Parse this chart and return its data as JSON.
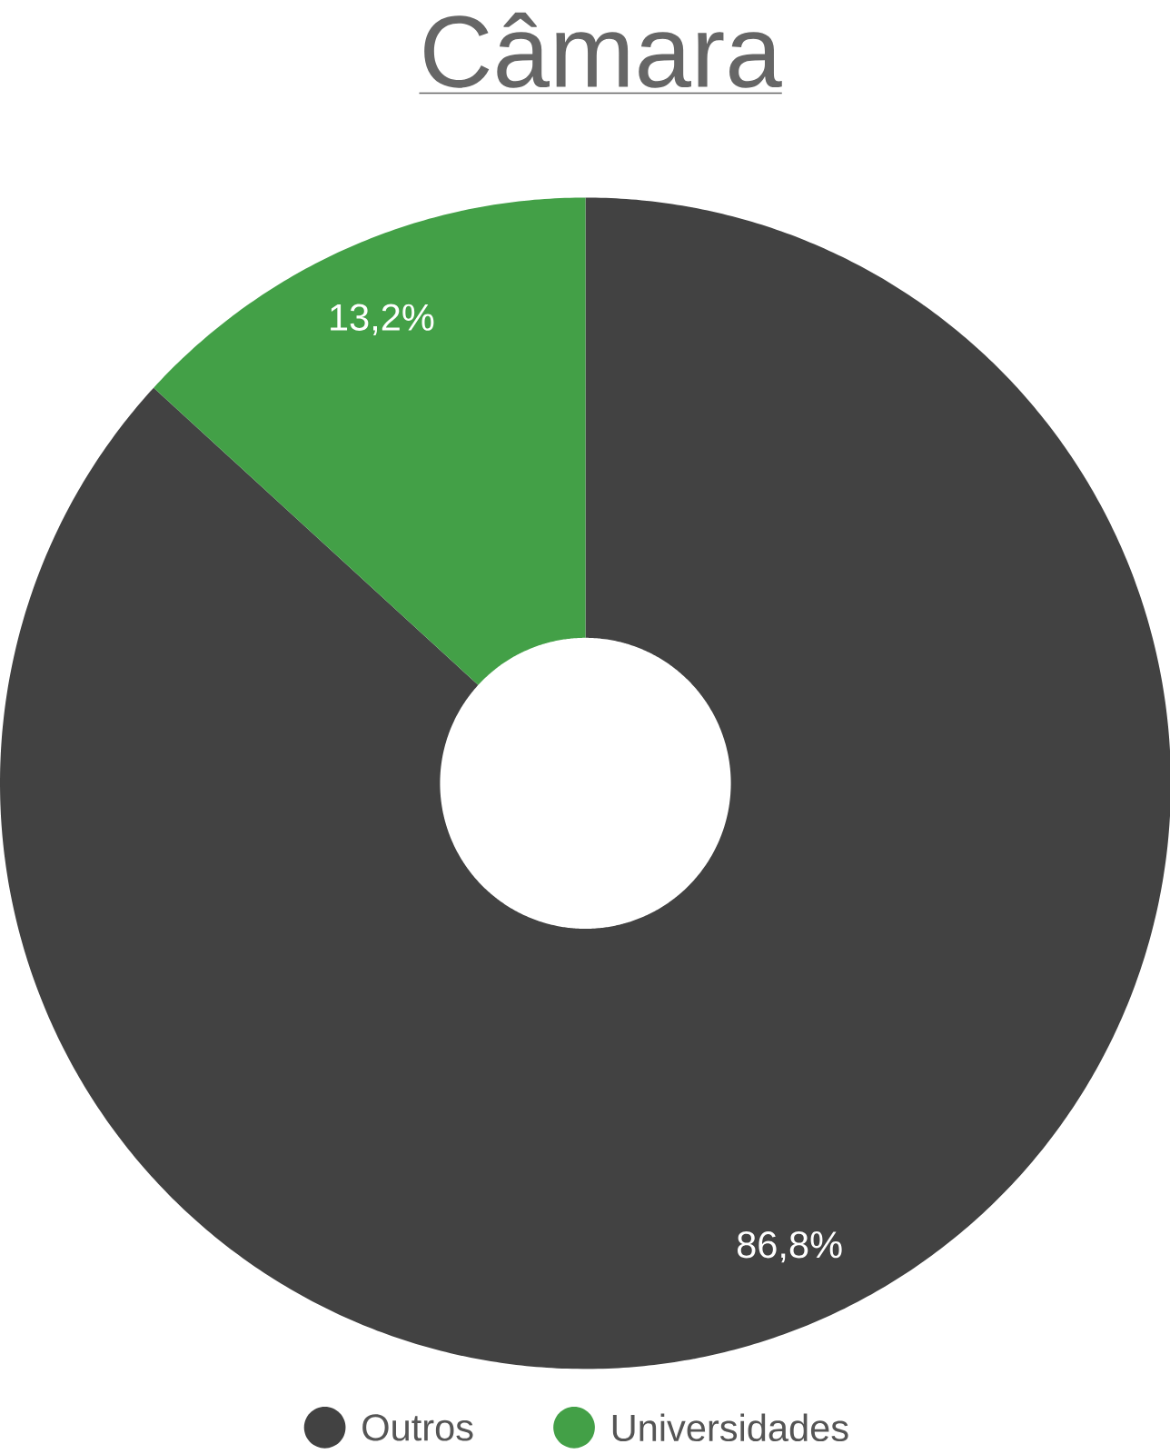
{
  "chart_data": {
    "type": "donut",
    "title": "Câmara",
    "categories": [
      "Outros",
      "Universidades"
    ],
    "values": [
      86.8,
      13.2
    ],
    "colors": [
      "#424242",
      "#43a047"
    ],
    "value_labels": [
      "86,8%",
      "13,2%"
    ],
    "legend": "bottom"
  }
}
